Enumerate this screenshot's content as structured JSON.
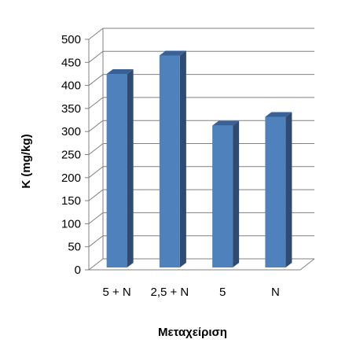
{
  "chart_data": {
    "type": "bar",
    "three_d": true,
    "title": "",
    "xlabel": "Μεταχείριση",
    "ylabel": "K (mg/kg)",
    "categories": [
      "5 + N",
      "2,5 + N",
      "5",
      "N"
    ],
    "values": [
      425,
      465,
      313,
      332
    ],
    "ylim": [
      0,
      500
    ],
    "yticks": [
      0,
      50,
      100,
      150,
      200,
      250,
      300,
      350,
      400,
      450,
      500
    ],
    "grid": true,
    "legend": "none",
    "colors": {
      "bar_front": "#4F81BD",
      "bar_side": "#2F4B72",
      "bar_top": "#3A6194",
      "grid": "#808080"
    }
  }
}
